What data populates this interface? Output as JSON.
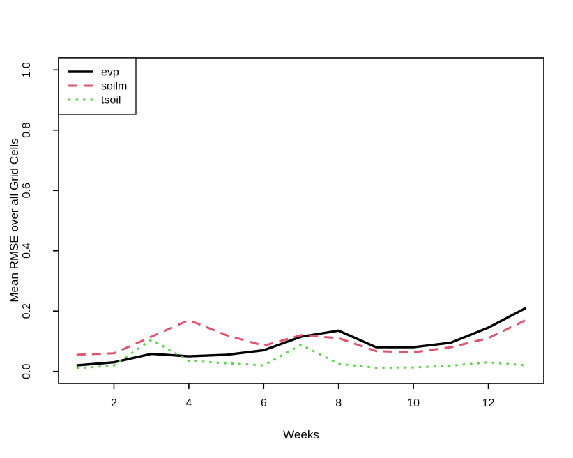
{
  "figure": {
    "background": "#ffffff",
    "border_color": "#000000"
  },
  "chart_data": {
    "type": "line",
    "title": "",
    "xlabel": "Weeks",
    "ylabel": "Mean RMSE over all Grid Cells",
    "x": [
      1,
      2,
      3,
      4,
      5,
      6,
      7,
      8,
      9,
      10,
      11,
      12,
      13
    ],
    "xlim": [
      1,
      13
    ],
    "ylim": [
      0,
      1
    ],
    "x_ticks": [
      2,
      4,
      6,
      8,
      10,
      12
    ],
    "x_tick_labels": [
      "2",
      "4",
      "6",
      "8",
      "10",
      "12"
    ],
    "y_ticks": [
      0.0,
      0.2,
      0.4,
      0.6,
      0.8,
      1.0
    ],
    "y_tick_labels": [
      "0.0",
      "0.2",
      "0.4",
      "0.6",
      "0.8",
      "1.0"
    ],
    "grid": false,
    "legend": {
      "position": "topleft",
      "entries": [
        "evp",
        "soilm",
        "tsoil"
      ]
    },
    "series": [
      {
        "name": "evp",
        "color": "#000000",
        "line_style": "solid",
        "values": [
          0.02,
          0.03,
          0.058,
          0.05,
          0.055,
          0.07,
          0.115,
          0.135,
          0.08,
          0.08,
          0.095,
          0.145,
          0.21
        ]
      },
      {
        "name": "soilm",
        "color": "#DF536B",
        "line_style": "dashed",
        "values": [
          0.055,
          0.06,
          0.115,
          0.17,
          0.12,
          0.085,
          0.12,
          0.11,
          0.067,
          0.063,
          0.08,
          0.11,
          0.17
        ]
      },
      {
        "name": "tsoil",
        "color": "#61D04F",
        "line_style": "dotted",
        "values": [
          0.01,
          0.02,
          0.105,
          0.035,
          0.027,
          0.02,
          0.088,
          0.025,
          0.012,
          0.013,
          0.019,
          0.03,
          0.02
        ]
      }
    ]
  }
}
